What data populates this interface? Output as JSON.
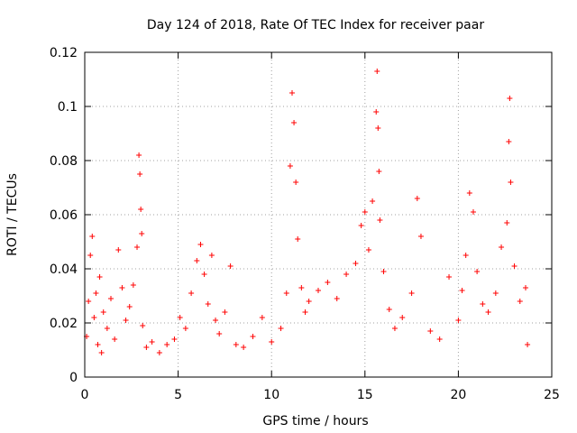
{
  "chart_data": {
    "type": "scatter",
    "title": "Day 124 of 2018, Rate Of TEC Index for receiver paar",
    "xlabel": "GPS time / hours",
    "ylabel": "ROTI / TECUs",
    "xlim": [
      0,
      25
    ],
    "ylim": [
      0,
      0.12
    ],
    "xticks": [
      0,
      5,
      10,
      15,
      20,
      25
    ],
    "xtick_labels": [
      "0",
      "5",
      "10",
      "15",
      "20",
      "25"
    ],
    "yticks": [
      0,
      0.02,
      0.04,
      0.06,
      0.08,
      0.1,
      0.12
    ],
    "ytick_labels": [
      "0",
      "0.02",
      "0.04",
      "0.06",
      "0.08",
      "0.1",
      "0.12"
    ],
    "grid": true,
    "marker": "+",
    "color": "#ff0000",
    "series": [
      {
        "name": "ROTI",
        "x": [
          0.1,
          0.2,
          0.3,
          0.4,
          0.5,
          0.6,
          0.7,
          0.8,
          0.9,
          1.0,
          1.2,
          1.4,
          1.6,
          1.8,
          2.0,
          2.2,
          2.4,
          2.6,
          2.8,
          2.9,
          2.95,
          3.0,
          3.05,
          3.1,
          3.3,
          3.6,
          4.0,
          4.4,
          4.8,
          5.1,
          5.4,
          5.7,
          6.0,
          6.2,
          6.4,
          6.6,
          6.8,
          7.0,
          7.2,
          7.5,
          7.8,
          8.1,
          8.5,
          9.0,
          9.5,
          10.0,
          10.5,
          10.8,
          11.0,
          11.1,
          11.2,
          11.3,
          11.4,
          11.6,
          11.8,
          12.0,
          12.5,
          13.0,
          13.5,
          14.0,
          14.5,
          14.8,
          15.0,
          15.2,
          15.4,
          15.6,
          15.65,
          15.7,
          15.75,
          15.8,
          16.0,
          16.3,
          16.6,
          17.0,
          17.5,
          17.8,
          18.0,
          18.5,
          19.0,
          19.5,
          20.0,
          20.2,
          20.4,
          20.6,
          20.8,
          21.0,
          21.3,
          21.6,
          22.0,
          22.3,
          22.6,
          22.7,
          22.75,
          22.8,
          23.0,
          23.3,
          23.6,
          23.7
        ],
        "y": [
          0.015,
          0.028,
          0.045,
          0.052,
          0.022,
          0.031,
          0.012,
          0.037,
          0.009,
          0.024,
          0.018,
          0.029,
          0.014,
          0.047,
          0.033,
          0.021,
          0.026,
          0.034,
          0.048,
          0.082,
          0.075,
          0.062,
          0.053,
          0.019,
          0.011,
          0.013,
          0.009,
          0.012,
          0.014,
          0.022,
          0.018,
          0.031,
          0.043,
          0.049,
          0.038,
          0.027,
          0.045,
          0.021,
          0.016,
          0.024,
          0.041,
          0.012,
          0.011,
          0.015,
          0.022,
          0.013,
          0.018,
          0.031,
          0.078,
          0.105,
          0.094,
          0.072,
          0.051,
          0.033,
          0.024,
          0.028,
          0.032,
          0.035,
          0.029,
          0.038,
          0.042,
          0.056,
          0.061,
          0.047,
          0.065,
          0.098,
          0.113,
          0.092,
          0.076,
          0.058,
          0.039,
          0.025,
          0.018,
          0.022,
          0.031,
          0.066,
          0.052,
          0.017,
          0.014,
          0.037,
          0.021,
          0.032,
          0.045,
          0.068,
          0.061,
          0.039,
          0.027,
          0.024,
          0.031,
          0.048,
          0.057,
          0.087,
          0.103,
          0.072,
          0.041,
          0.028,
          0.033,
          0.012
        ]
      }
    ]
  }
}
